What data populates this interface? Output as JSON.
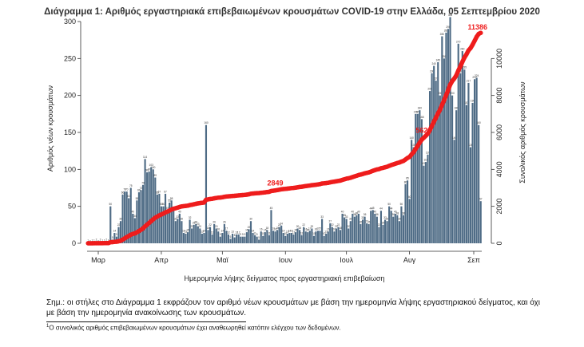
{
  "chart_data": {
    "type": "bar+line",
    "title": "Διάγραμμα 1: Αριθμός εργαστηριακά επιβεβαιωμένων κρουσμάτων COVID-19 στην Ελλάδα, 05 Σεπτεμβρίου 2020",
    "xlabel": "Ημερομηνία λήψης δείγματος προς εργαστηριακή επιβεβαίωση",
    "ylabel_left": "Αριθμός νέων κρουσμάτων",
    "ylabel_right": "Συνολικός αριθμός κρουσμάτων",
    "x_tick_labels": [
      "Μαρ",
      "Απρ",
      "Μαϊ",
      "Ιουν",
      "Ιουλ",
      "Αυγ",
      "Σεπ"
    ],
    "ylim_left": [
      0,
      300
    ],
    "yticks_left": [
      0,
      50,
      100,
      150,
      200,
      250,
      300
    ],
    "ylim_right": [
      0,
      12000
    ],
    "yticks_right": [
      0,
      2000,
      4000,
      6000,
      8000,
      10000
    ],
    "bar_color": "#4e6b85",
    "line_color": "#ee1c1c",
    "daily_new_cases": [
      1,
      0,
      1,
      1,
      2,
      0,
      2,
      1,
      1,
      2,
      1,
      50,
      5,
      14,
      9,
      22,
      30,
      66,
      70,
      70,
      61,
      75,
      40,
      34,
      58,
      69,
      72,
      79,
      114,
      96,
      97,
      103,
      100,
      89,
      66,
      67,
      50,
      50,
      67,
      45,
      55,
      58,
      44,
      30,
      33,
      40,
      30,
      14,
      13,
      15,
      32,
      20,
      25,
      26,
      23,
      20,
      13,
      14,
      160,
      18,
      22,
      12,
      26,
      20,
      16,
      9,
      14,
      26,
      17,
      12,
      6,
      13,
      8,
      12,
      12,
      9,
      9,
      9,
      15,
      19,
      30,
      14,
      11,
      9,
      5,
      16,
      10,
      15,
      18,
      11,
      45,
      17,
      16,
      18,
      22,
      24,
      14,
      10,
      13,
      14,
      14,
      12,
      15,
      20,
      18,
      11,
      22,
      16,
      15,
      17,
      20,
      10,
      16,
      17,
      17,
      33,
      10,
      13,
      16,
      27,
      22,
      16,
      20,
      22,
      18,
      40,
      35,
      33,
      20,
      30,
      40,
      36,
      38,
      40,
      26,
      32,
      36,
      27,
      26,
      44,
      45,
      40,
      36,
      22,
      44,
      25,
      32,
      30,
      50,
      44,
      36,
      40,
      38,
      30,
      50,
      38,
      80,
      85,
      60,
      140,
      130,
      175,
      175,
      180,
      168,
      105,
      110,
      120,
      206,
      230,
      240,
      220,
      245,
      200,
      280,
      250,
      285,
      290,
      306,
      200,
      140,
      180,
      270,
      230,
      260,
      235,
      187,
      217,
      130,
      190,
      222,
      224,
      160,
      57
    ],
    "annotations_bar_max": "306",
    "cumulative_labels": [
      {
        "label": "2849"
      },
      {
        "label": "5623"
      },
      {
        "label": "11386"
      }
    ],
    "cumulative_end": 11386
  },
  "note": {
    "line1": "Σημ.: οι στήλες στο Διάγραμμα 1 εκφράζουν τον αριθμό νέων κρουσμάτων με βάση την ημερομηνία λήψης εργαστηριακού δείγματος, και όχι",
    "line2": "με βάση την ημερομηνία ανακοίνωσης των κρουσμάτων."
  },
  "footnote": {
    "mark": "1",
    "text": "Ο συνολικός αριθμός επιβεβαιωμένων κρουσμάτων έχει αναθεωρηθεί κατόπιν ελέγχου των δεδομένων."
  }
}
